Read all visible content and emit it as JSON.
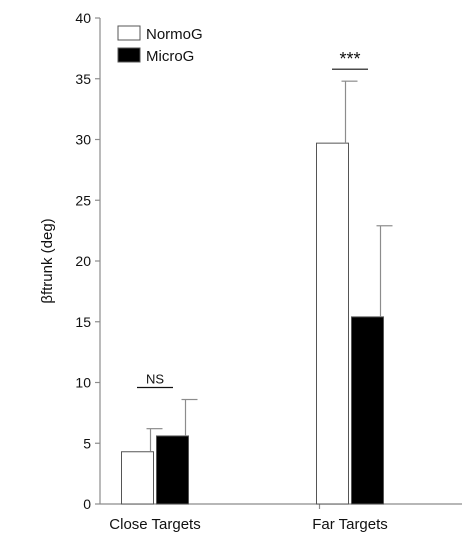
{
  "chart_data": {
    "type": "bar",
    "categories": [
      "Close Targets",
      "Far Targets"
    ],
    "series": [
      {
        "name": "NormoG",
        "values": [
          4.3,
          29.7
        ],
        "errors": [
          1.9,
          5.1
        ],
        "color": "#ffffff"
      },
      {
        "name": "MicroG",
        "values": [
          5.6,
          15.4
        ],
        "errors": [
          3.0,
          7.5
        ],
        "color": "#000000"
      }
    ],
    "xlabel": "",
    "ylabel": "βftrunk (deg)",
    "ylim": [
      0,
      40
    ],
    "yticks": [
      0,
      5,
      10,
      15,
      20,
      25,
      30,
      35,
      40
    ],
    "grid": false,
    "legend": {
      "position": "top-left",
      "entries": [
        "NormoG",
        "MicroG"
      ]
    },
    "annotations": [
      {
        "category": "Close Targets",
        "text": "NS"
      },
      {
        "category": "Far Targets",
        "text": "***"
      }
    ]
  }
}
